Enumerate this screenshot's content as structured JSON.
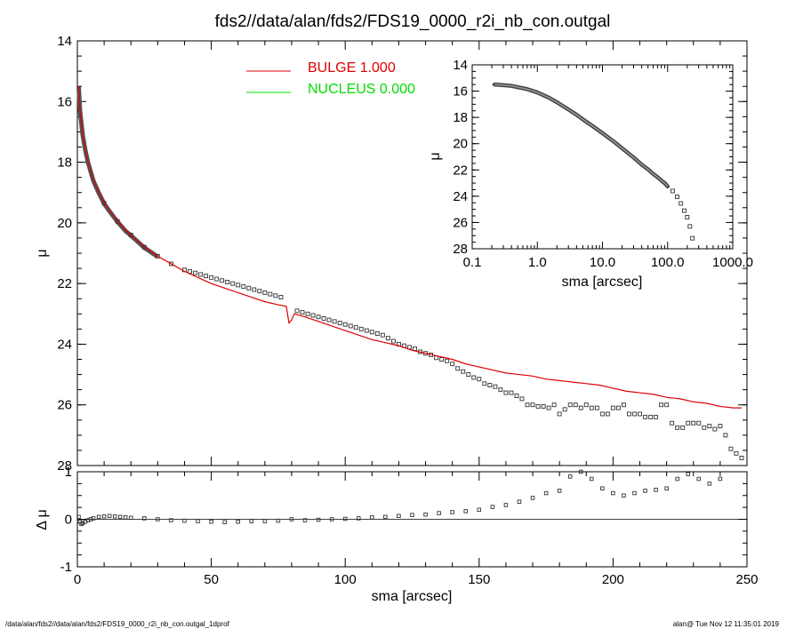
{
  "title": "fds2//data/alan/fds2/FDS19_0000_r2i_nb_con.outgal",
  "footer": {
    "left": "/data/alan/fds2//data/alan/fds2/FDS19_0000_r2i_nb_con.outgal_1dprof",
    "right": "alan@  Tue Nov 12 11:35:01 2019"
  },
  "colors": {
    "bulge": "#e00000",
    "nucleus": "#00dd00",
    "model_core": "#555555",
    "axis": "#000000"
  },
  "chart_data": [
    {
      "id": "main",
      "type": "scatter",
      "xlabel": "",
      "ylabel": "μ",
      "xlim": [
        0,
        250
      ],
      "ylim": [
        28,
        14
      ],
      "yticks": [
        14,
        16,
        18,
        20,
        22,
        24,
        26,
        28
      ],
      "legend": {
        "placement": "top-center",
        "entries": [
          {
            "name": "BULGE  1.000",
            "color": "#e00000"
          },
          {
            "name": "NUCLEUS  0.000",
            "color": "#00dd00"
          }
        ]
      },
      "series": [
        {
          "name": "BULGE",
          "style": "line",
          "x": [
            0.5,
            1,
            2,
            3,
            4,
            5,
            6,
            8,
            10,
            12,
            15,
            18,
            20,
            25,
            30,
            35,
            40,
            45,
            50,
            55,
            60,
            65,
            70,
            75,
            78,
            79,
            80,
            81,
            85,
            90,
            95,
            100,
            105,
            110,
            115,
            120,
            125,
            130,
            135,
            140,
            145,
            150,
            155,
            160,
            165,
            170,
            175,
            180,
            185,
            190,
            195,
            200,
            205,
            210,
            215,
            220,
            225,
            230,
            235,
            240,
            245,
            248
          ],
          "y": [
            15.5,
            16.3,
            17.1,
            17.6,
            18.0,
            18.3,
            18.6,
            19.0,
            19.35,
            19.6,
            19.95,
            20.25,
            20.4,
            20.8,
            21.1,
            21.35,
            21.6,
            21.8,
            22.0,
            22.15,
            22.3,
            22.45,
            22.6,
            22.7,
            22.75,
            23.3,
            23.2,
            23.0,
            23.1,
            23.25,
            23.4,
            23.55,
            23.7,
            23.85,
            23.95,
            24.05,
            24.2,
            24.3,
            24.4,
            24.5,
            24.65,
            24.75,
            24.85,
            24.95,
            25.0,
            25.05,
            25.15,
            25.2,
            25.25,
            25.3,
            25.35,
            25.45,
            25.55,
            25.6,
            25.65,
            25.75,
            25.8,
            25.9,
            25.95,
            26.05,
            26.1,
            26.1
          ]
        },
        {
          "name": "data",
          "style": "open-square",
          "x": [
            10,
            15,
            20,
            25,
            30,
            35,
            40,
            42,
            44,
            46,
            48,
            50,
            52,
            54,
            56,
            58,
            60,
            62,
            64,
            66,
            68,
            70,
            72,
            74,
            76,
            82,
            84,
            86,
            88,
            90,
            92,
            94,
            96,
            98,
            100,
            102,
            104,
            106,
            108,
            110,
            112,
            114,
            116,
            118,
            120,
            122,
            124,
            126,
            128,
            130,
            132,
            134,
            136,
            138,
            140,
            142,
            144,
            146,
            148,
            150,
            152,
            154,
            156,
            158,
            160,
            162,
            164,
            166,
            168,
            170,
            172,
            174,
            176,
            178,
            180,
            182,
            184,
            186,
            188,
            190,
            192,
            194,
            196,
            198,
            200,
            202,
            204,
            206,
            208,
            210,
            212,
            214,
            216,
            218,
            220,
            222,
            224,
            226,
            228,
            230,
            232,
            234,
            236,
            238,
            240,
            242,
            244,
            246,
            248
          ],
          "y": [
            19.35,
            19.95,
            20.4,
            20.8,
            21.1,
            21.35,
            21.55,
            21.6,
            21.65,
            21.7,
            21.75,
            21.8,
            21.85,
            21.9,
            21.95,
            22.0,
            22.05,
            22.1,
            22.15,
            22.2,
            22.25,
            22.3,
            22.35,
            22.4,
            22.45,
            22.9,
            22.95,
            23.0,
            23.05,
            23.1,
            23.15,
            23.2,
            23.25,
            23.3,
            23.35,
            23.4,
            23.45,
            23.5,
            23.55,
            23.6,
            23.65,
            23.7,
            23.8,
            23.9,
            24.0,
            24.05,
            24.1,
            24.15,
            24.25,
            24.3,
            24.35,
            24.45,
            24.5,
            24.55,
            24.65,
            24.8,
            24.9,
            25.0,
            25.1,
            25.15,
            25.3,
            25.35,
            25.4,
            25.5,
            25.6,
            25.6,
            25.7,
            25.8,
            26.0,
            26.0,
            26.05,
            26.05,
            26.1,
            26.0,
            26.3,
            26.15,
            26.0,
            26.0,
            26.1,
            26.0,
            26.1,
            26.1,
            26.3,
            26.3,
            26.1,
            26.1,
            26.0,
            26.3,
            26.3,
            26.3,
            26.4,
            26.4,
            26.4,
            26.0,
            26.0,
            26.6,
            26.75,
            26.75,
            26.6,
            26.6,
            26.6,
            26.75,
            26.7,
            26.8,
            26.7,
            27.0,
            27.45,
            27.6,
            27.75
          ]
        }
      ]
    },
    {
      "id": "residual",
      "type": "scatter",
      "xlabel": "sma [arcsec]",
      "ylabel": "Δ μ",
      "xlim": [
        0,
        250
      ],
      "ylim": [
        -1.0,
        1.0
      ],
      "xticks": [
        0,
        50,
        100,
        150,
        200,
        250
      ],
      "yticks": [
        -1,
        0,
        1
      ],
      "series": [
        {
          "name": "residual",
          "style": "open-square",
          "x": [
            0.5,
            1,
            1.5,
            2,
            3,
            4,
            5,
            6,
            8,
            10,
            12,
            14,
            16,
            18,
            20,
            25,
            30,
            35,
            40,
            45,
            50,
            55,
            60,
            65,
            70,
            75,
            80,
            85,
            90,
            95,
            100,
            105,
            110,
            115,
            120,
            125,
            130,
            135,
            140,
            145,
            150,
            155,
            160,
            165,
            170,
            175,
            180,
            184,
            188,
            192,
            196,
            200,
            204,
            208,
            212,
            216,
            220,
            224,
            228,
            232,
            236,
            240
          ],
          "y": [
            0.05,
            -0.05,
            -0.1,
            -0.08,
            -0.05,
            -0.02,
            0.0,
            0.02,
            0.05,
            0.06,
            0.07,
            0.06,
            0.05,
            0.04,
            0.03,
            0.02,
            0.0,
            -0.02,
            -0.03,
            -0.04,
            -0.05,
            -0.06,
            -0.05,
            -0.04,
            -0.04,
            -0.03,
            0.0,
            -0.02,
            -0.01,
            0.0,
            0.01,
            0.02,
            0.04,
            0.05,
            0.07,
            0.09,
            0.1,
            0.13,
            0.15,
            0.17,
            0.2,
            0.26,
            0.3,
            0.37,
            0.45,
            0.55,
            0.6,
            0.9,
            1.0,
            0.85,
            0.65,
            0.55,
            0.5,
            0.55,
            0.6,
            0.62,
            0.65,
            0.85,
            0.95,
            0.85,
            0.75,
            0.85
          ]
        }
      ]
    },
    {
      "id": "inset",
      "type": "scatter",
      "xlabel": "sma [arcsec]",
      "ylabel": "μ",
      "xscale": "log",
      "xlim": [
        0.1,
        1000.0
      ],
      "ylim": [
        28,
        14
      ],
      "xticks": [
        0.1,
        1.0,
        10.0,
        100.0,
        1000.0
      ],
      "xtick_labels": [
        "0.1",
        "1.0",
        "10.0",
        "100.0",
        "1000.0"
      ],
      "yticks": [
        14,
        16,
        18,
        20,
        22,
        24,
        26,
        28
      ],
      "series": [
        {
          "name": "profile",
          "style": "open-square",
          "x": [
            0.22,
            0.3,
            0.4,
            0.5,
            0.7,
            1.0,
            1.5,
            2.0,
            3.0,
            4.0,
            5.0,
            7.0,
            10.0,
            15.0,
            20.0,
            30.0,
            40.0,
            50.0,
            60.0,
            70.0,
            80.0,
            90.0,
            100.0,
            120.0,
            140.0,
            160.0,
            180.0,
            200.0,
            220.0,
            240.0
          ],
          "y": [
            15.5,
            15.55,
            15.6,
            15.7,
            15.85,
            16.1,
            16.5,
            16.85,
            17.4,
            17.8,
            18.15,
            18.65,
            19.2,
            19.85,
            20.35,
            21.05,
            21.6,
            21.95,
            22.3,
            22.55,
            22.8,
            23.0,
            23.25,
            23.6,
            24.05,
            24.55,
            25.1,
            25.6,
            26.3,
            27.2
          ]
        }
      ]
    }
  ]
}
